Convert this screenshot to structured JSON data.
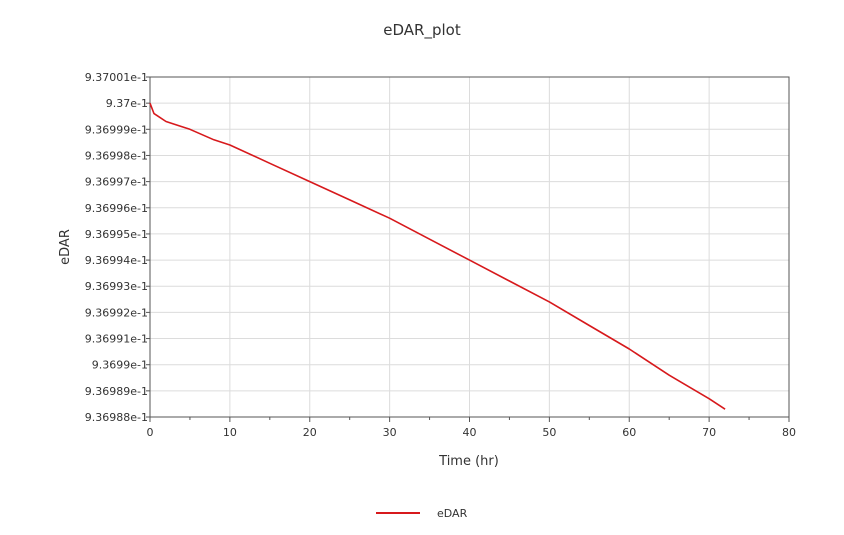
{
  "chart_data": {
    "type": "line",
    "title": "eDAR_plot",
    "xlabel": "Time (hr)",
    "ylabel": "eDAR",
    "xlim": [
      0,
      80
    ],
    "ylim": [
      0.936988,
      0.937001
    ],
    "x_ticks": [
      "0",
      "10",
      "20",
      "30",
      "40",
      "50",
      "60",
      "70",
      "80"
    ],
    "y_ticks": [
      "9.37001e-1",
      "9.37e-1",
      "9.36999e-1",
      "9.36998e-1",
      "9.36997e-1",
      "9.36996e-1",
      "9.36995e-1",
      "9.36994e-1",
      "9.36993e-1",
      "9.36992e-1",
      "9.36991e-1",
      "9.3699e-1",
      "9.36989e-1",
      "9.36988e-1"
    ],
    "grid": true,
    "legend_position": "bottom",
    "series": [
      {
        "name": "eDAR",
        "color": "#d7191c",
        "x": [
          0,
          0.5,
          1,
          2,
          3,
          5,
          8,
          10,
          15,
          20,
          25,
          30,
          35,
          40,
          45,
          50,
          55,
          60,
          65,
          70,
          72
        ],
        "y": [
          0.937,
          0.9369996,
          0.9369995,
          0.9369993,
          0.9369992,
          0.936999,
          0.9369986,
          0.9369984,
          0.9369977,
          0.936997,
          0.9369963,
          0.9369956,
          0.9369948,
          0.936994,
          0.9369932,
          0.9369924,
          0.9369915,
          0.9369906,
          0.9369896,
          0.9369887,
          0.9369883
        ]
      }
    ]
  }
}
